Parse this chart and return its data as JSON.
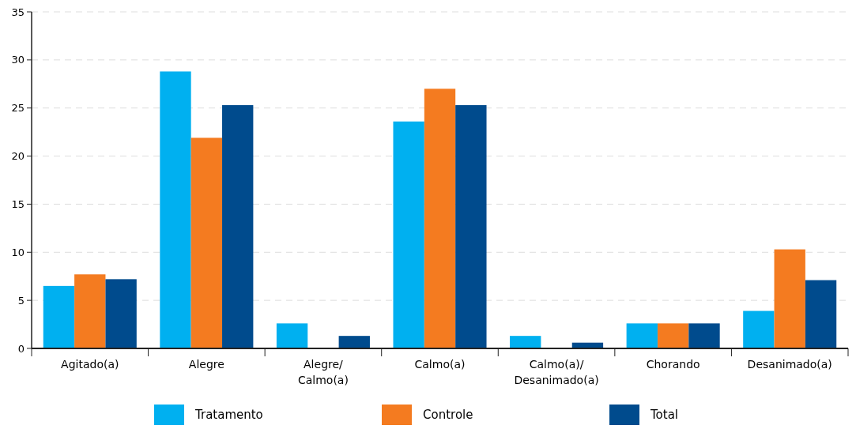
{
  "chart_data": {
    "type": "bar",
    "categories": [
      "Agitado(a)",
      "Alegre",
      "Alegre/Calmo(a)",
      "Calmo(a)",
      "Calmo(a)/Desanimado(a)",
      "Chorando",
      "Desanimado(a)"
    ],
    "series": [
      {
        "name": "Tratamento",
        "color": "#00b0f0",
        "values": [
          6.5,
          28.8,
          2.6,
          23.6,
          1.3,
          2.6,
          3.9
        ]
      },
      {
        "name": "Controle",
        "color": "#f47b20",
        "values": [
          7.7,
          21.9,
          0,
          27.0,
          0,
          2.6,
          10.3
        ]
      },
      {
        "name": "Total",
        "color": "#004b8d",
        "values": [
          7.2,
          25.3,
          1.3,
          25.3,
          0.6,
          2.6,
          7.1
        ]
      }
    ],
    "ylim": [
      0,
      35
    ],
    "yticks": [
      0,
      5,
      10,
      15,
      20,
      25,
      30,
      35
    ],
    "grid": "y",
    "legend": "bottom"
  }
}
